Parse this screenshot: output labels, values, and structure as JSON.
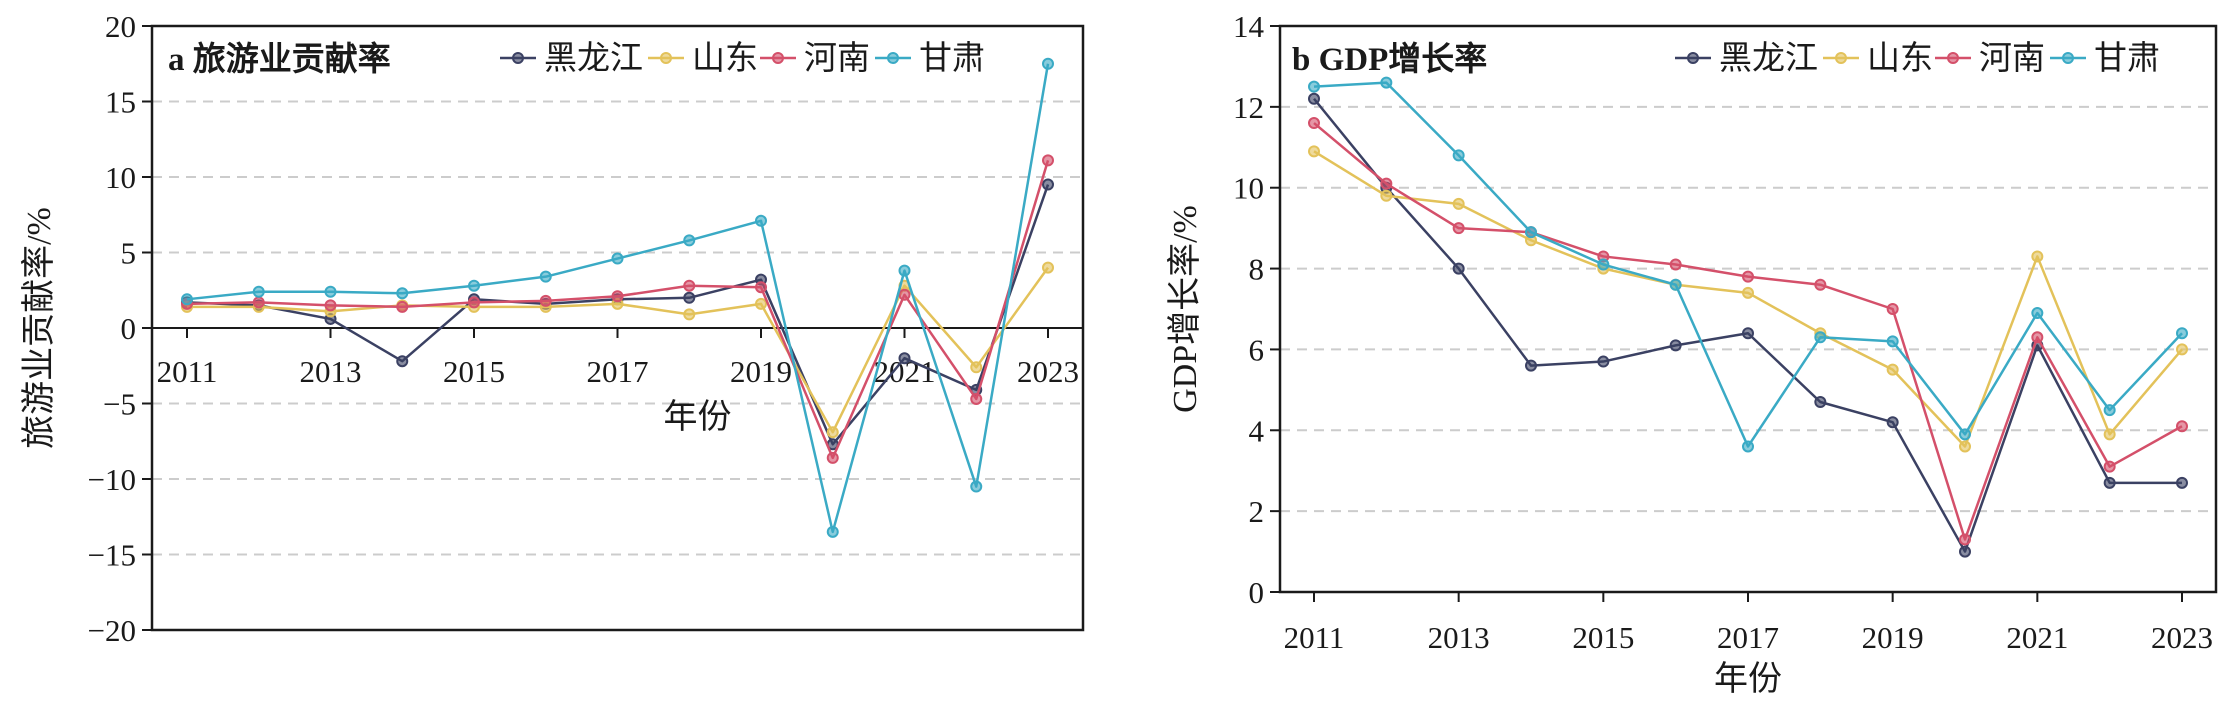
{
  "chart_data": [
    {
      "type": "line",
      "title": "a 旅游业贡献率",
      "xlabel": "年份",
      "ylabel": "旅游业贡献率/%",
      "x": [
        2011,
        2012,
        2013,
        2014,
        2015,
        2016,
        2017,
        2018,
        2019,
        2020,
        2021,
        2022,
        2023
      ],
      "xticks": [
        "2011",
        "2013",
        "2015",
        "2017",
        "2019",
        "2021",
        "2023"
      ],
      "xlim": [
        2011,
        2023
      ],
      "ylim": [
        -20,
        20
      ],
      "yticks": [
        "20",
        "15",
        "10",
        "5",
        "0",
        "−5",
        "−10",
        "−15",
        "−20"
      ],
      "grid": "horizontal dashed",
      "legend": "top",
      "series": [
        {
          "name": "黑龙江",
          "color": "#3b4163",
          "values": [
            1.7,
            1.5,
            0.6,
            -2.2,
            1.9,
            1.6,
            1.9,
            2.0,
            3.2,
            -7.7,
            -2.0,
            -4.1,
            9.5
          ]
        },
        {
          "name": "山东",
          "color": "#e3c25a",
          "values": [
            1.4,
            1.4,
            1.1,
            1.5,
            1.4,
            1.4,
            1.6,
            0.9,
            1.6,
            -6.9,
            2.8,
            -2.6,
            4.0
          ]
        },
        {
          "name": "河南",
          "color": "#d4506a",
          "values": [
            1.6,
            1.7,
            1.5,
            1.4,
            1.7,
            1.8,
            2.1,
            2.8,
            2.7,
            -8.6,
            2.2,
            -4.7,
            11.1
          ]
        },
        {
          "name": "甘肃",
          "color": "#3aaac5",
          "values": [
            1.9,
            2.4,
            2.4,
            2.3,
            2.8,
            3.4,
            4.6,
            5.8,
            7.1,
            -13.5,
            3.8,
            -10.5,
            17.5
          ]
        }
      ]
    },
    {
      "type": "line",
      "title": "b GDP增长率",
      "xlabel": "年份",
      "ylabel": "GDP增长率/%",
      "x": [
        2011,
        2012,
        2013,
        2014,
        2015,
        2016,
        2017,
        2018,
        2019,
        2020,
        2021,
        2022,
        2023
      ],
      "xticks": [
        "2011",
        "2013",
        "2015",
        "2017",
        "2019",
        "2021",
        "2023"
      ],
      "xlim": [
        2011,
        2023
      ],
      "ylim": [
        0,
        14
      ],
      "yticks": [
        "14",
        "12",
        "10",
        "8",
        "6",
        "4",
        "2",
        "0"
      ],
      "grid": "horizontal dashed",
      "legend": "top",
      "series": [
        {
          "name": "黑龙江",
          "color": "#3b4163",
          "values": [
            12.2,
            10.0,
            8.0,
            5.6,
            5.7,
            6.1,
            6.4,
            4.7,
            4.2,
            1.0,
            6.1,
            2.7,
            2.7
          ]
        },
        {
          "name": "山东",
          "color": "#e3c25a",
          "values": [
            10.9,
            9.8,
            9.6,
            8.7,
            8.0,
            7.6,
            7.4,
            6.4,
            5.5,
            3.6,
            8.3,
            3.9,
            6.0
          ]
        },
        {
          "name": "河南",
          "color": "#d4506a",
          "values": [
            11.6,
            10.1,
            9.0,
            8.9,
            8.3,
            8.1,
            7.8,
            7.6,
            7.0,
            1.3,
            6.3,
            3.1,
            4.1
          ]
        },
        {
          "name": "甘肃",
          "color": "#3aaac5",
          "values": [
            12.5,
            12.6,
            10.8,
            8.9,
            8.1,
            7.6,
            3.6,
            6.3,
            6.2,
            3.9,
            6.9,
            4.5,
            6.4
          ]
        }
      ]
    }
  ]
}
